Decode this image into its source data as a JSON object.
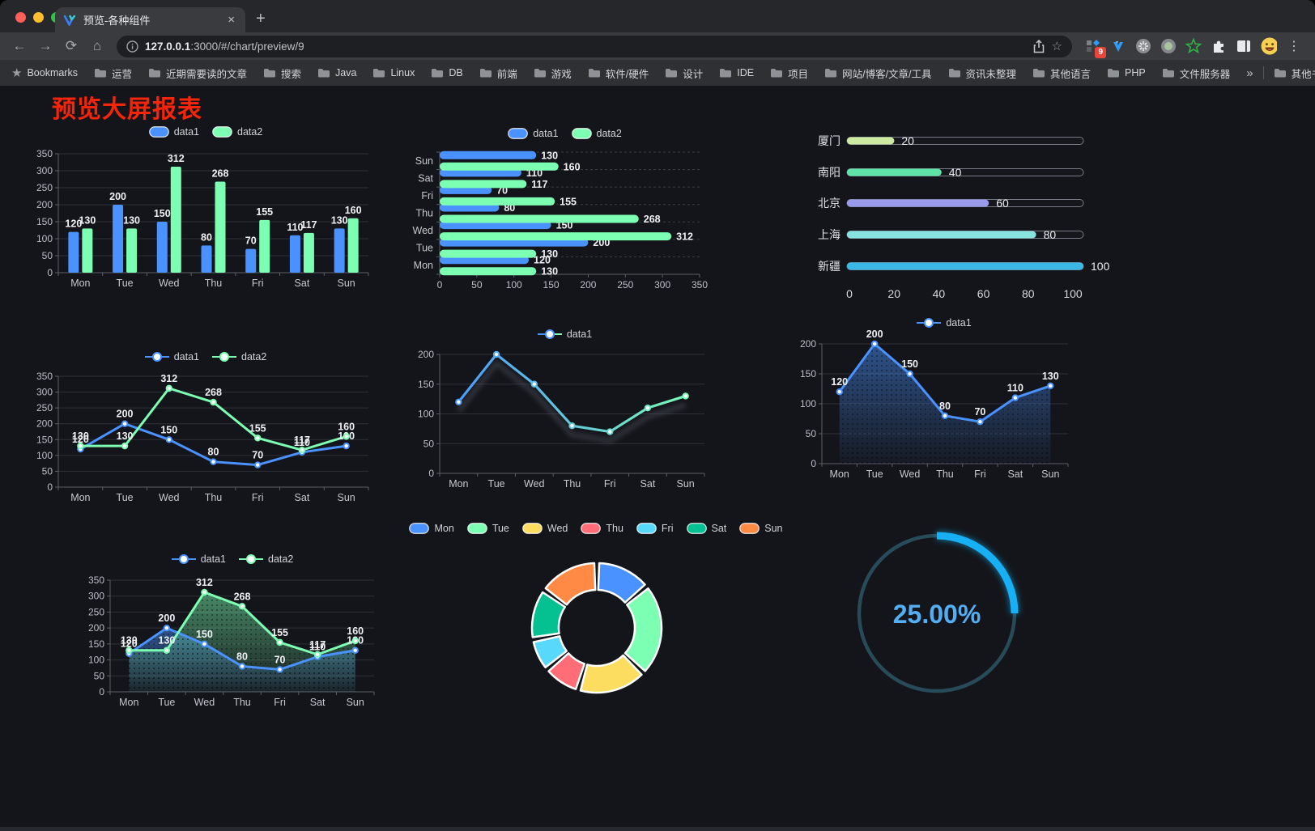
{
  "window": {
    "controls": [
      "close",
      "minimize",
      "zoom"
    ],
    "control_colors": [
      "#ff5f57",
      "#febc2e",
      "#28c840"
    ]
  },
  "tab": {
    "title": "预览-各种组件",
    "close_glyph": "×",
    "new_tab_glyph": "+"
  },
  "toolbar": {
    "back_glyph": "←",
    "forward_glyph": "→",
    "reload_glyph": "⟳",
    "home_glyph": "⌂",
    "url_host": "127.0.0.1",
    "url_path": ":3000/#/chart/preview/9",
    "bookmark_star_glyph": "☆",
    "extension_badge": "9",
    "menu_glyph": "⋮"
  },
  "bookmarks_bar": {
    "label": "Bookmarks",
    "star_glyph": "★",
    "items": [
      "运营",
      "近期需要读的文章",
      "搜索",
      "Java",
      "Linux",
      "DB",
      "前端",
      "游戏",
      "软件/硬件",
      "设计",
      "IDE",
      "项目",
      "网站/博客/文章/工具",
      "资讯未整理",
      "其他语言",
      "PHP",
      "文件服务器"
    ],
    "overflow_glyph": "»",
    "other_label": "其他书签"
  },
  "page": {
    "title": "预览大屏报表",
    "title_color": "#f5250c",
    "background": "#14151a"
  },
  "chart_data": [
    {
      "id": "bar-vertical",
      "type": "bar",
      "legend_position": "top",
      "grid": true,
      "categories": [
        "Mon",
        "Tue",
        "Wed",
        "Thu",
        "Fri",
        "Sat",
        "Sun"
      ],
      "series": [
        {
          "name": "data1",
          "color": "#4992ff",
          "values": [
            120,
            200,
            150,
            80,
            70,
            110,
            130
          ]
        },
        {
          "name": "data2",
          "color": "#7cffb2",
          "values": [
            130,
            130,
            312,
            268,
            155,
            117,
            160
          ]
        }
      ],
      "ylim": [
        0,
        350
      ],
      "ytick": 50,
      "show_labels": true
    },
    {
      "id": "bar-horizontal",
      "type": "bar",
      "orientation": "horizontal",
      "legend_position": "top",
      "categories": [
        "Mon",
        "Tue",
        "Wed",
        "Thu",
        "Fri",
        "Sat",
        "Sun"
      ],
      "series": [
        {
          "name": "data1",
          "color": "#4992ff",
          "values": [
            120,
            200,
            150,
            80,
            70,
            110,
            130
          ]
        },
        {
          "name": "data2",
          "color": "#7cffb2",
          "values": [
            130,
            130,
            312,
            268,
            155,
            117,
            160
          ]
        }
      ],
      "xlim": [
        0,
        350
      ],
      "xtick": 50,
      "show_labels": true
    },
    {
      "id": "progress-bars",
      "type": "bar",
      "subtype": "capsule-progress",
      "categories": [
        "厦门",
        "南阳",
        "北京",
        "上海",
        "新疆"
      ],
      "values": [
        20,
        40,
        60,
        80,
        100
      ],
      "colors": [
        "#cdeaa2",
        "#5fe3a7",
        "#999bea",
        "#87e3de",
        "#3bb9e6"
      ],
      "xlim": [
        0,
        100
      ],
      "xticks": [
        0,
        20,
        40,
        60,
        80,
        100
      ],
      "show_labels": true
    },
    {
      "id": "line-multi",
      "type": "line",
      "legend_position": "top",
      "categories": [
        "Mon",
        "Tue",
        "Wed",
        "Thu",
        "Fri",
        "Sat",
        "Sun"
      ],
      "series": [
        {
          "name": "data1",
          "color": "#4992ff",
          "values": [
            120,
            200,
            150,
            80,
            70,
            110,
            130
          ]
        },
        {
          "name": "data2",
          "color": "#7cffb2",
          "values": [
            130,
            130,
            312,
            268,
            155,
            117,
            160
          ]
        }
      ],
      "ylim": [
        0,
        350
      ],
      "ytick": 50,
      "show_labels": true
    },
    {
      "id": "line-gradient",
      "type": "line",
      "legend_position": "top",
      "categories": [
        "Mon",
        "Tue",
        "Wed",
        "Thu",
        "Fri",
        "Sat",
        "Sun"
      ],
      "series": [
        {
          "name": "data1",
          "gradient": [
            "#4992ff",
            "#7cffb2"
          ],
          "values": [
            120,
            200,
            150,
            80,
            70,
            110,
            130
          ]
        }
      ],
      "ylim": [
        0,
        200
      ],
      "ytick": 50,
      "show_labels": false
    },
    {
      "id": "area-single",
      "type": "area",
      "legend_position": "top",
      "categories": [
        "Mon",
        "Tue",
        "Wed",
        "Thu",
        "Fri",
        "Sat",
        "Sun"
      ],
      "series": [
        {
          "name": "data1",
          "color": "#4992ff",
          "values": [
            120,
            200,
            150,
            80,
            70,
            110,
            130
          ]
        }
      ],
      "ylim": [
        0,
        200
      ],
      "ytick": 50,
      "show_labels": true
    },
    {
      "id": "area-multi",
      "type": "area",
      "legend_position": "top",
      "categories": [
        "Mon",
        "Tue",
        "Wed",
        "Thu",
        "Fri",
        "Sat",
        "Sun"
      ],
      "series": [
        {
          "name": "data1",
          "color": "#4992ff",
          "values": [
            120,
            200,
            150,
            80,
            70,
            110,
            130
          ]
        },
        {
          "name": "data2",
          "color": "#7cffb2",
          "values": [
            130,
            130,
            312,
            268,
            155,
            117,
            160
          ]
        }
      ],
      "ylim": [
        0,
        350
      ],
      "ytick": 50,
      "show_labels": true
    },
    {
      "id": "donut",
      "type": "pie",
      "legend_position": "top",
      "labels": [
        "Mon",
        "Tue",
        "Wed",
        "Thu",
        "Fri",
        "Sat",
        "Sun"
      ],
      "values": [
        120,
        200,
        150,
        80,
        70,
        110,
        130
      ],
      "colors": [
        "#4992ff",
        "#7cffb2",
        "#fddd60",
        "#ff6e76",
        "#58d9f9",
        "#05c091",
        "#ff8a45"
      ]
    },
    {
      "id": "gauge",
      "type": "gauge",
      "value": 25,
      "label": "25.00%",
      "progress_color": "#18b0f5",
      "track_color": "#274b58",
      "text_color": "#54aef2"
    }
  ]
}
